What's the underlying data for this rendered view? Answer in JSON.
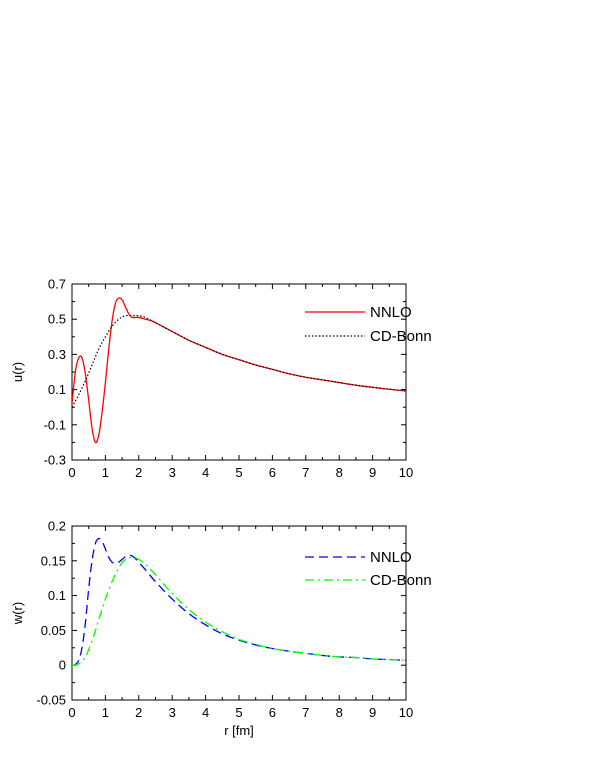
{
  "chart_data": [
    {
      "type": "line",
      "xlabel": "",
      "ylabel": "u(r)",
      "xlim": [
        0,
        10
      ],
      "ylim": [
        -0.3,
        0.7
      ],
      "xticks": [
        "0",
        "1",
        "2",
        "3",
        "4",
        "5",
        "6",
        "7",
        "8",
        "9",
        "10"
      ],
      "yticks": [
        "-0.3",
        "-0.1",
        "0.1",
        "0.3",
        "0.5",
        "0.7"
      ],
      "legend_position": "top-right",
      "grid": false,
      "series": [
        {
          "name": "NNLO",
          "color": "#ff0000",
          "style": "solid",
          "x": [
            0,
            0.1,
            0.2,
            0.3,
            0.4,
            0.5,
            0.6,
            0.7,
            0.8,
            0.9,
            1.0,
            1.1,
            1.2,
            1.3,
            1.4,
            1.5,
            1.6,
            1.7,
            1.8,
            1.9,
            2.0,
            2.2,
            2.4,
            2.6,
            2.8,
            3.0,
            3.5,
            4.0,
            4.5,
            5.0,
            5.5,
            6.0,
            6.5,
            7.0,
            7.5,
            8.0,
            8.5,
            9.0,
            9.5,
            10.0
          ],
          "y": [
            0.02,
            0.2,
            0.28,
            0.28,
            0.19,
            0.04,
            -0.12,
            -0.2,
            -0.16,
            -0.03,
            0.14,
            0.33,
            0.49,
            0.59,
            0.62,
            0.61,
            0.57,
            0.53,
            0.51,
            0.51,
            0.51,
            0.5,
            0.49,
            0.47,
            0.45,
            0.43,
            0.38,
            0.34,
            0.3,
            0.27,
            0.24,
            0.215,
            0.19,
            0.17,
            0.155,
            0.14,
            0.125,
            0.113,
            0.102,
            0.092
          ]
        },
        {
          "name": "CD-Bonn",
          "color": "#000000",
          "style": "dotted",
          "x": [
            0,
            0.2,
            0.4,
            0.6,
            0.8,
            1.0,
            1.2,
            1.4,
            1.6,
            1.8,
            2.0,
            2.2,
            2.4,
            2.6,
            2.8,
            3.0,
            3.5,
            4.0,
            4.5,
            5.0,
            5.5,
            6.0,
            6.5,
            7.0,
            7.5,
            8.0,
            8.5,
            9.0,
            9.5,
            10.0
          ],
          "y": [
            0.0,
            0.07,
            0.15,
            0.24,
            0.33,
            0.4,
            0.46,
            0.5,
            0.52,
            0.52,
            0.52,
            0.51,
            0.49,
            0.47,
            0.45,
            0.43,
            0.38,
            0.34,
            0.3,
            0.27,
            0.24,
            0.215,
            0.19,
            0.17,
            0.155,
            0.14,
            0.125,
            0.113,
            0.102,
            0.092
          ]
        }
      ]
    },
    {
      "type": "line",
      "xlabel": "r [fm]",
      "ylabel": "w(r)",
      "xlim": [
        0,
        10
      ],
      "ylim": [
        -0.05,
        0.2
      ],
      "xticks": [
        "0",
        "1",
        "2",
        "3",
        "4",
        "5",
        "6",
        "7",
        "8",
        "9",
        "10"
      ],
      "yticks": [
        "-0.05",
        "0",
        "0.05",
        "0.1",
        "0.15",
        "0.2"
      ],
      "legend_position": "top-right",
      "grid": false,
      "series": [
        {
          "name": "NNLO",
          "color": "#0000ff",
          "style": "dashed",
          "x": [
            0,
            0.1,
            0.2,
            0.3,
            0.4,
            0.5,
            0.6,
            0.7,
            0.8,
            0.9,
            1.0,
            1.1,
            1.2,
            1.3,
            1.4,
            1.5,
            1.6,
            1.7,
            1.8,
            1.9,
            2.0,
            2.2,
            2.5,
            3.0,
            3.5,
            4.0,
            4.5,
            5.0,
            5.5,
            6.0,
            6.5,
            7.0,
            7.5,
            8.0,
            8.5,
            9.0,
            9.5,
            10.0
          ],
          "y": [
            0.0,
            0.001,
            0.007,
            0.025,
            0.06,
            0.11,
            0.15,
            0.175,
            0.182,
            0.178,
            0.167,
            0.155,
            0.148,
            0.146,
            0.148,
            0.152,
            0.156,
            0.158,
            0.157,
            0.153,
            0.148,
            0.137,
            0.12,
            0.095,
            0.074,
            0.058,
            0.045,
            0.036,
            0.029,
            0.024,
            0.02,
            0.017,
            0.014,
            0.012,
            0.011,
            0.009,
            0.008,
            0.007
          ]
        },
        {
          "name": "CD-Bonn",
          "color": "#00ff00",
          "style": "dash-dot",
          "x": [
            0,
            0.2,
            0.4,
            0.6,
            0.8,
            1.0,
            1.2,
            1.4,
            1.6,
            1.8,
            2.0,
            2.2,
            2.5,
            3.0,
            3.5,
            4.0,
            4.5,
            5.0,
            5.5,
            6.0,
            6.5,
            7.0,
            7.5,
            8.0,
            8.5,
            9.0,
            9.5,
            10.0
          ],
          "y": [
            0.0,
            0.002,
            0.012,
            0.035,
            0.065,
            0.095,
            0.12,
            0.14,
            0.152,
            0.155,
            0.152,
            0.145,
            0.13,
            0.103,
            0.08,
            0.062,
            0.048,
            0.037,
            0.03,
            0.024,
            0.02,
            0.017,
            0.014,
            0.012,
            0.011,
            0.009,
            0.008,
            0.007
          ]
        }
      ]
    }
  ]
}
